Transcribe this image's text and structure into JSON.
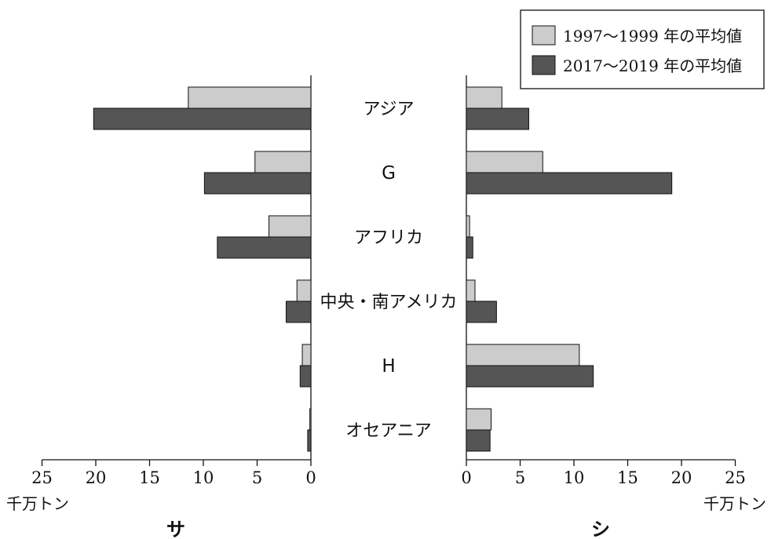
{
  "chart_data": {
    "type": "bar",
    "orientation": "horizontal",
    "categories": [
      "アジア",
      "G",
      "アフリカ",
      "中央・南アメリカ",
      "H",
      "オセアニア"
    ],
    "legend": {
      "placement": "top-right",
      "entries": [
        "1997～1999 年の平均値",
        "2017～2019 年の平均値"
      ]
    },
    "colors": {
      "series_1": "#cccccc",
      "series_2": "#555555",
      "axis": "#111111"
    },
    "unit_label": "千万トン",
    "xlim": [
      0,
      25
    ],
    "ticks": [
      "25",
      "20",
      "15",
      "10",
      "5",
      "0",
      "5",
      "10",
      "15",
      "20",
      "25"
    ],
    "panels": [
      {
        "label": "サ",
        "direction": "left",
        "series": [
          {
            "name": "1997～1999 年の平均値",
            "values": [
              11.4,
              5.2,
              3.9,
              1.3,
              0.8,
              0.1
            ]
          },
          {
            "name": "2017～2019 年の平均値",
            "values": [
              20.2,
              9.9,
              8.7,
              2.3,
              1.0,
              0.3
            ]
          }
        ]
      },
      {
        "label": "シ",
        "direction": "right",
        "series": [
          {
            "name": "1997～1999 年の平均値",
            "values": [
              3.3,
              7.1,
              0.3,
              0.8,
              10.5,
              2.3
            ]
          },
          {
            "name": "2017～2019 年の平均値",
            "values": [
              5.8,
              19.1,
              0.6,
              2.8,
              11.8,
              2.2
            ]
          }
        ]
      }
    ]
  }
}
